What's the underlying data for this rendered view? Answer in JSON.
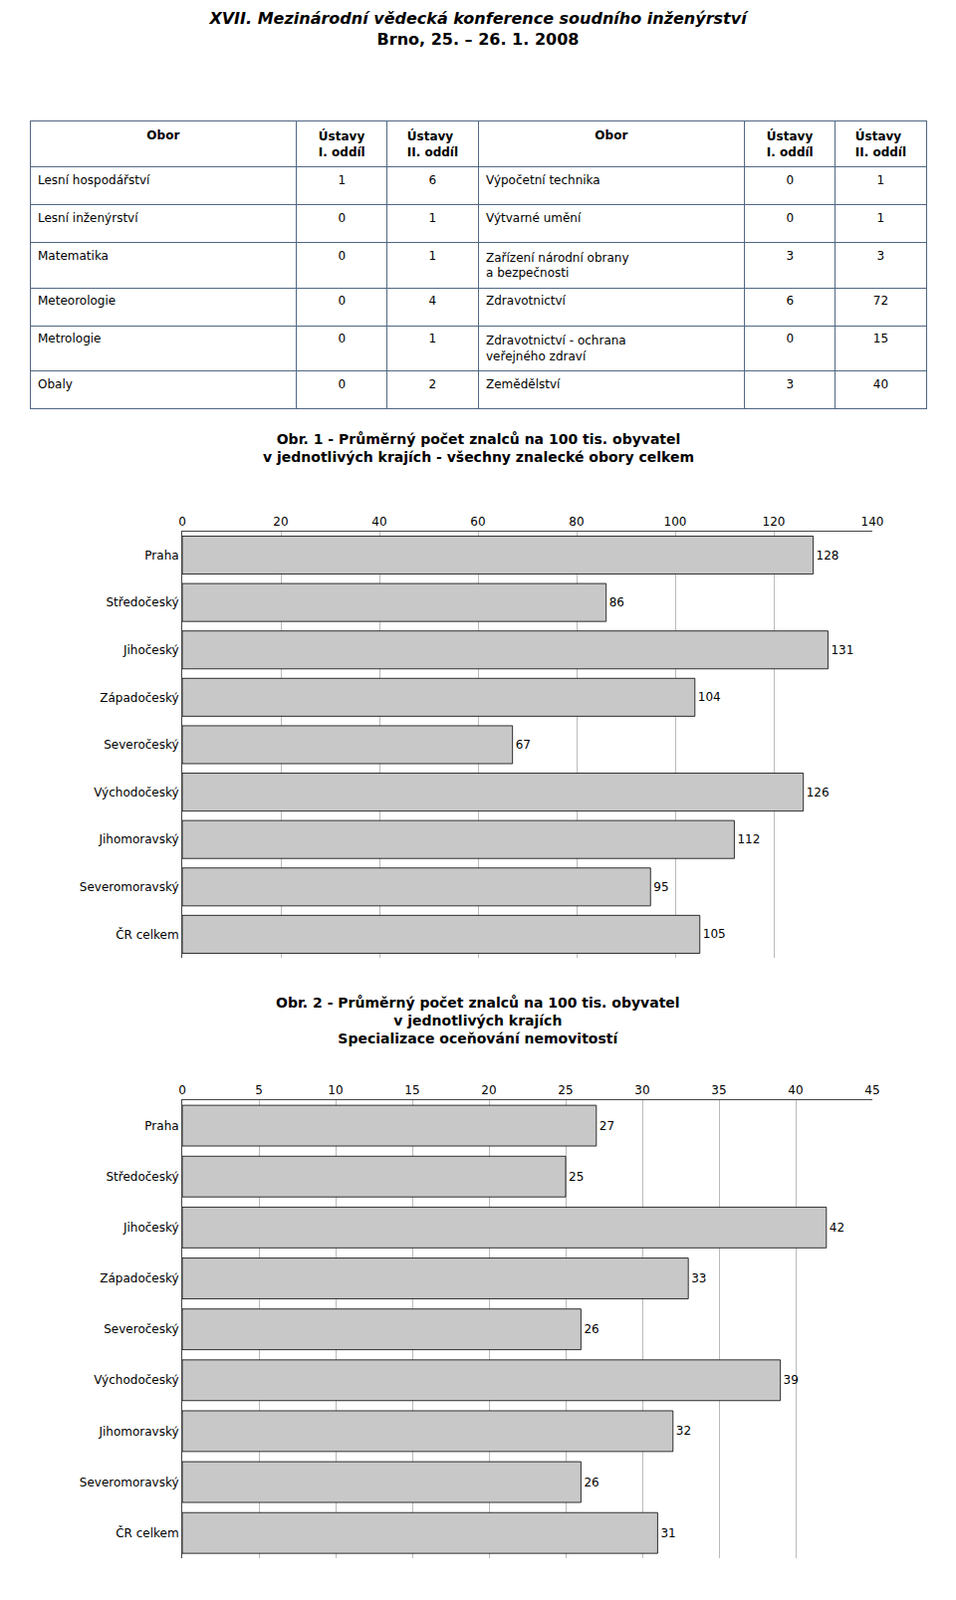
{
  "title": "XVII. Mezinárodní vědecká konference soudního inženýrství",
  "subtitle": "Brno, 25. – 26. 1. 2008",
  "chart_data": [
    {
      "type": "table",
      "header": [
        "Obor",
        "Ústavy\nI. oddíl",
        "Ústavy\nII. oddíl",
        "Obor",
        "Ústavy\nI. oddíl",
        "Ústavy\nII. oddíl"
      ],
      "rows": [
        [
          "Lesní hospodářství",
          "1",
          "6",
          "Výpočetní technika",
          "0",
          "1"
        ],
        [
          "Lesní inženýrství",
          "0",
          "1",
          "Výtvarné umění",
          "0",
          "1"
        ],
        [
          "Matematika",
          "0",
          "1",
          "Zařízení národní obrany\na bezpečnosti",
          "3",
          "3"
        ],
        [
          "Meteorologie",
          "0",
          "4",
          "Zdravotnictví",
          "6",
          "72"
        ],
        [
          "Metrologie",
          "0",
          "1",
          "Zdravotnictví - ochrana\nveřejného zdraví",
          "0",
          "15"
        ],
        [
          "Obaly",
          "0",
          "2",
          "Zemědělství",
          "3",
          "40"
        ]
      ]
    },
    {
      "type": "bar",
      "title": "Obr. 1 - Průměrný počet znalců na 100 tis. obyvatel\nv jednotlivých krajích - všechny znalecké obory celkem",
      "orientation": "horizontal",
      "categories": [
        "Praha",
        "Středočeský",
        "Jihočeský",
        "Západočeský",
        "Severočeský",
        "Východočeský",
        "Jihomoravský",
        "Severomoravský",
        "ČR celkem"
      ],
      "values": [
        128,
        86,
        131,
        104,
        67,
        126,
        112,
        95,
        105
      ],
      "color": "#c8c8c8",
      "xlim": [
        0,
        140
      ],
      "xticks": [
        0,
        20,
        40,
        60,
        80,
        100,
        120,
        140
      ],
      "grid": true,
      "data_labels": true
    },
    {
      "type": "bar",
      "title": "Obr. 2 - Průměrný počet znalců na 100 tis. obyvatel\nv jednotlivých krajích\nSpecializace oceňování nemovitostí",
      "orientation": "horizontal",
      "categories": [
        "Praha",
        "Středočeský",
        "Jihočeský",
        "Západočeský",
        "Severočeský",
        "Východočeský",
        "Jihomoravský",
        "Severomoravský",
        "ČR celkem"
      ],
      "values": [
        27,
        25,
        42,
        33,
        26,
        39,
        32,
        26,
        31
      ],
      "color": "#c8c8c8",
      "xlim": [
        0,
        45
      ],
      "xticks": [
        0,
        5,
        10,
        15,
        20,
        25,
        30,
        35,
        40,
        45
      ],
      "grid": true,
      "data_labels": true
    }
  ]
}
